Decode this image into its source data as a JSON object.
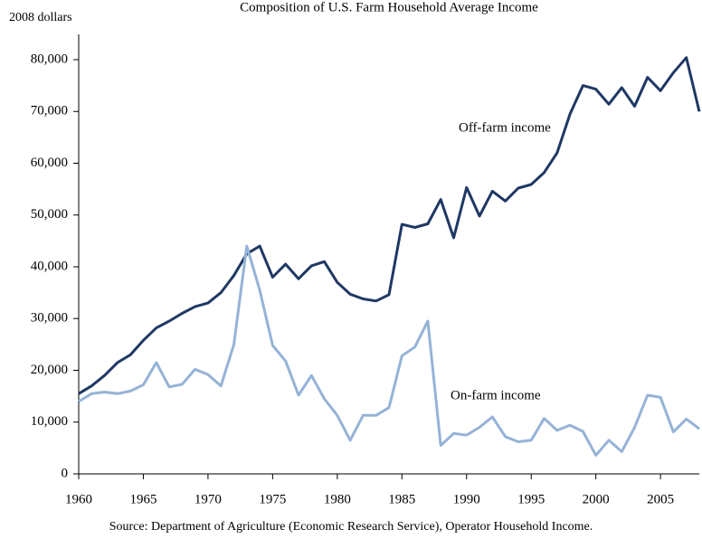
{
  "chart_data": {
    "type": "line",
    "title": "Composition of U.S. Farm Household Average Income",
    "y_label": "2008 dollars",
    "source": "Source: Department of Agriculture (Economic Research Service), Operator Household Income.",
    "x": [
      1960,
      1961,
      1962,
      1963,
      1964,
      1965,
      1966,
      1967,
      1968,
      1969,
      1970,
      1971,
      1972,
      1973,
      1974,
      1975,
      1976,
      1977,
      1978,
      1979,
      1980,
      1981,
      1982,
      1983,
      1984,
      1985,
      1986,
      1987,
      1988,
      1989,
      1990,
      1991,
      1992,
      1993,
      1994,
      1995,
      1996,
      1997,
      1998,
      1999,
      2000,
      2001,
      2002,
      2003,
      2004,
      2005,
      2006,
      2007,
      2008
    ],
    "series": [
      {
        "name": "Off-farm income",
        "color": "#1f3864",
        "values": [
          15500,
          17000,
          19000,
          21500,
          23000,
          25800,
          28200,
          29500,
          31000,
          32300,
          33000,
          35000,
          38300,
          42500,
          44000,
          38000,
          40500,
          37700,
          40200,
          41000,
          37000,
          34700,
          33800,
          33400,
          34600,
          48200,
          47600,
          48300,
          53000,
          45600,
          55300,
          49800,
          54600,
          52700,
          55200,
          55900,
          58200,
          62000,
          69500,
          75000,
          74300,
          71400,
          74600,
          71000,
          76600,
          74000,
          77500,
          80400,
          70000
        ]
      },
      {
        "name": "On-farm income",
        "color": "#95b3d7",
        "values": [
          14000,
          15500,
          15800,
          15500,
          16000,
          17200,
          21500,
          16800,
          17300,
          20200,
          19200,
          17000,
          25000,
          44000,
          35500,
          24800,
          21800,
          15200,
          19000,
          14500,
          11300,
          6500,
          11300,
          11300,
          12800,
          22800,
          24500,
          29500,
          5500,
          7800,
          7500,
          9000,
          11000,
          7200,
          6200,
          6500,
          10700,
          8400,
          9400,
          8200,
          3600,
          6500,
          4300,
          9000,
          15200,
          14800,
          8100,
          10600,
          8700
        ]
      }
    ],
    "xlim": [
      1960,
      2008
    ],
    "xticks": [
      1960,
      1965,
      1970,
      1975,
      1980,
      1985,
      1990,
      1995,
      2000,
      2005
    ],
    "ylim": [
      0,
      80000
    ],
    "yticks": [
      0,
      {
        "value": 10000,
        "label": "10,000"
      },
      {
        "value": 20000,
        "label": "20,000"
      },
      {
        "value": 30000,
        "label": "30,000"
      },
      {
        "value": 40000,
        "label": "40,000"
      },
      {
        "value": 50000,
        "label": "50,000"
      },
      {
        "value": 60000,
        "label": "60,000"
      },
      {
        "value": 70000,
        "label": "70,000"
      },
      {
        "value": 80000,
        "label": "80,000"
      }
    ],
    "grid": false
  }
}
